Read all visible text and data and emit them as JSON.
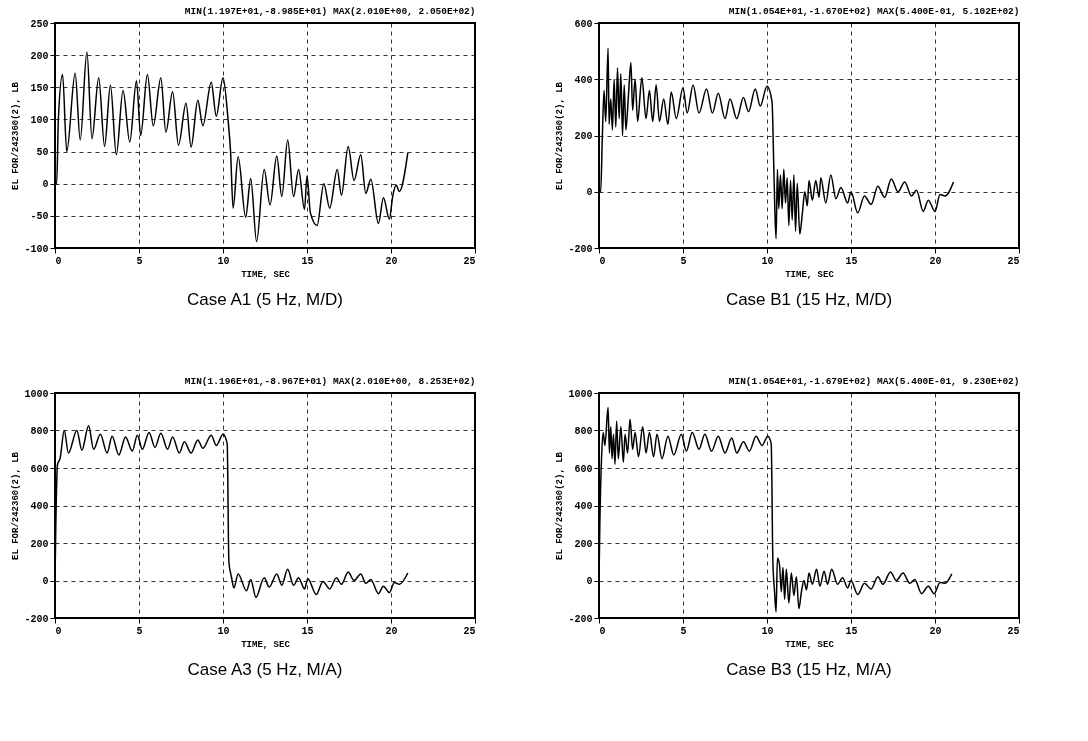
{
  "chart_data": [
    {
      "type": "line",
      "title": "MIN(1.197E+01,-8.985E+01) MAX(2.010E+00, 2.050E+02)",
      "xlabel": "TIME, SEC",
      "ylabel": "EL FOR/242360(2), LB",
      "annotations": [
        "Case A1 (5 Hz, M/D)"
      ],
      "color": "#000000",
      "grid": true,
      "xlim": [
        0,
        25
      ],
      "xticks": [
        0,
        5,
        10,
        15,
        20,
        25
      ],
      "ylim": [
        -100,
        250
      ],
      "yticks": [
        -100,
        -50,
        0,
        50,
        100,
        150,
        200,
        250
      ],
      "x": [
        0,
        0.1,
        0.2,
        0.45,
        0.7,
        1.2,
        1.5,
        1.9,
        2.2,
        2.6,
        2.95,
        3.3,
        3.65,
        4.05,
        4.45,
        4.85,
        5.1,
        5.5,
        5.85,
        6.3,
        6.6,
        7.0,
        7.35,
        7.8,
        8.1,
        8.5,
        8.8,
        9.3,
        9.6,
        10.0,
        10.3,
        10.45,
        10.6,
        10.9,
        11.35,
        11.65,
        12.0,
        12.45,
        12.8,
        13.2,
        13.5,
        13.85,
        14.2,
        14.5,
        14.85,
        15.0,
        15.2,
        15.6,
        16.0,
        16.35,
        16.8,
        17.05,
        17.45,
        17.8,
        18.2,
        18.5,
        18.8,
        19.25,
        19.55,
        19.9,
        20.1,
        20.3,
        20.5,
        21.0
      ],
      "values": [
        0,
        0,
        100,
        170,
        50,
        172,
        68,
        205,
        70,
        165,
        58,
        153,
        45,
        145,
        65,
        160,
        75,
        170,
        90,
        165,
        80,
        143,
        60,
        125,
        57,
        130,
        90,
        158,
        105,
        165,
        100,
        50,
        -38,
        42,
        -52,
        8,
        -90,
        22,
        -33,
        43,
        -20,
        68,
        -20,
        22,
        -40,
        12,
        -45,
        -65,
        0,
        -38,
        22,
        -18,
        58,
        5,
        45,
        -15,
        7,
        -62,
        -22,
        -55,
        -20,
        -2,
        -12,
        48
      ]
    },
    {
      "type": "line",
      "title": "MIN(1.054E+01,-1.670E+02) MAX(5.400E-01, 5.102E+02)",
      "xlabel": "TIME, SEC",
      "ylabel": "EL FOR/242360(2), LB",
      "annotations": [
        "Case B1 (15 Hz, M/D)"
      ],
      "color": "#000000",
      "grid": true,
      "xlim": [
        0,
        25
      ],
      "xticks": [
        0,
        5,
        10,
        15,
        20,
        25
      ],
      "ylim": [
        -200,
        600
      ],
      "yticks": [
        -200,
        0,
        200,
        400,
        600
      ],
      "x": [
        0,
        0.1,
        0.2,
        0.3,
        0.4,
        0.54,
        0.6,
        0.7,
        0.8,
        0.9,
        1.0,
        1.1,
        1.2,
        1.3,
        1.4,
        1.5,
        1.6,
        1.75,
        1.9,
        2.0,
        2.15,
        2.3,
        2.55,
        2.8,
        3.0,
        3.2,
        3.4,
        3.6,
        3.85,
        4.1,
        4.3,
        4.6,
        5.0,
        5.25,
        5.6,
        5.95,
        6.4,
        6.75,
        7.1,
        7.5,
        7.8,
        8.2,
        8.6,
        8.9,
        9.3,
        9.6,
        10.0,
        10.3,
        10.4,
        10.47,
        10.54,
        10.62,
        10.7,
        10.8,
        10.9,
        11.0,
        11.1,
        11.2,
        11.3,
        11.4,
        11.5,
        11.6,
        11.7,
        11.8,
        11.95,
        12.1,
        12.25,
        12.4,
        12.5,
        12.7,
        12.9,
        13.1,
        13.2,
        13.5,
        13.8,
        14.1,
        14.4,
        14.8,
        15.0,
        15.4,
        15.8,
        16.2,
        16.6,
        17.0,
        17.4,
        17.8,
        18.2,
        18.6,
        18.9,
        19.3,
        19.6,
        20.0,
        20.3,
        20.6,
        21.1
      ],
      "values": [
        0,
        0,
        200,
        360,
        250,
        510,
        240,
        330,
        220,
        400,
        230,
        440,
        260,
        420,
        200,
        380,
        220,
        340,
        460,
        290,
        400,
        250,
        405,
        260,
        360,
        250,
        380,
        250,
        330,
        240,
        355,
        260,
        370,
        280,
        380,
        280,
        365,
        280,
        350,
        260,
        330,
        260,
        335,
        285,
        365,
        305,
        375,
        320,
        100,
        -70,
        -167,
        80,
        -60,
        60,
        -60,
        80,
        -40,
        50,
        -120,
        40,
        -100,
        60,
        -140,
        30,
        -150,
        -80,
        0,
        -50,
        40,
        -30,
        40,
        -20,
        50,
        -40,
        60,
        -25,
        15,
        -40,
        0,
        -75,
        -15,
        -45,
        20,
        -20,
        45,
        0,
        35,
        -15,
        5,
        -70,
        -30,
        -70,
        -10,
        -15,
        35
      ]
    },
    {
      "type": "line",
      "title": "MIN(1.196E+01,-8.967E+01) MAX(2.010E+00, 8.253E+02)",
      "xlabel": "TIME, SEC",
      "ylabel": "EL FOR/242360(2), LB",
      "annotations": [
        "Case A3 (5 Hz, M/A)"
      ],
      "color": "#000000",
      "grid": true,
      "xlim": [
        0,
        25
      ],
      "xticks": [
        0,
        5,
        10,
        15,
        20,
        25
      ],
      "ylim": [
        -200,
        1000
      ],
      "yticks": [
        -200,
        0,
        200,
        400,
        600,
        800,
        1000
      ],
      "x": [
        0,
        0.05,
        0.15,
        0.3,
        0.55,
        0.8,
        1.3,
        1.6,
        2.0,
        2.3,
        2.7,
        3.1,
        3.4,
        3.8,
        4.2,
        4.6,
        4.9,
        5.2,
        5.6,
        5.95,
        6.3,
        6.7,
        7.0,
        7.4,
        7.7,
        8.1,
        8.5,
        8.8,
        9.3,
        9.6,
        10.0,
        10.25,
        10.35,
        10.5,
        10.65,
        10.9,
        11.4,
        11.65,
        11.96,
        12.45,
        12.75,
        13.2,
        13.5,
        13.85,
        14.2,
        14.5,
        14.85,
        15.05,
        15.55,
        15.95,
        16.35,
        16.75,
        17.05,
        17.45,
        17.8,
        18.2,
        18.5,
        18.8,
        19.25,
        19.55,
        19.9,
        20.2,
        20.5,
        21.0
      ],
      "values": [
        0,
        300,
        620,
        650,
        800,
        680,
        800,
        695,
        825,
        700,
        780,
        680,
        770,
        670,
        765,
        690,
        775,
        700,
        790,
        710,
        785,
        700,
        765,
        680,
        740,
        680,
        750,
        705,
        775,
        720,
        780,
        730,
        100,
        20,
        -40,
        35,
        -55,
        5,
        -90,
        15,
        -35,
        35,
        -25,
        60,
        -25,
        15,
        -45,
        10,
        -75,
        -5,
        -45,
        15,
        -20,
        45,
        0,
        35,
        -15,
        5,
        -70,
        -30,
        -65,
        -10,
        -20,
        40
      ]
    },
    {
      "type": "line",
      "title": "MIN(1.054E+01,-1.679E+02) MAX(5.400E-01, 9.230E+02)",
      "xlabel": "TIME, SEC",
      "ylabel": "EL FOR/242360(2), LB",
      "annotations": [
        "Case B3 (15 Hz, M/A)"
      ],
      "color": "#000000",
      "grid": true,
      "xlim": [
        0,
        25
      ],
      "xticks": [
        0,
        5,
        10,
        15,
        20,
        25
      ],
      "ylim": [
        -200,
        1000
      ],
      "yticks": [
        -200,
        0,
        200,
        400,
        600,
        800,
        1000
      ],
      "x": [
        0,
        0.05,
        0.15,
        0.25,
        0.35,
        0.54,
        0.62,
        0.7,
        0.78,
        0.86,
        0.95,
        1.05,
        1.15,
        1.3,
        1.45,
        1.55,
        1.7,
        1.85,
        2.0,
        2.15,
        2.35,
        2.6,
        2.8,
        3.0,
        3.25,
        3.45,
        3.75,
        4.1,
        4.45,
        4.9,
        5.2,
        5.55,
        5.95,
        6.3,
        6.7,
        7.1,
        7.5,
        7.9,
        8.2,
        8.6,
        8.95,
        9.35,
        9.7,
        10.05,
        10.25,
        10.35,
        10.45,
        10.54,
        10.62,
        10.75,
        10.85,
        10.95,
        11.05,
        11.15,
        11.3,
        11.45,
        11.6,
        11.75,
        11.9,
        12.05,
        12.2,
        12.35,
        12.5,
        12.7,
        12.95,
        13.15,
        13.4,
        13.6,
        13.85,
        14.2,
        14.5,
        14.8,
        15.0,
        15.4,
        15.8,
        16.2,
        16.6,
        16.9,
        17.35,
        17.7,
        18.1,
        18.5,
        18.8,
        19.2,
        19.6,
        19.95,
        20.3,
        20.6,
        21.0
      ],
      "values": [
        0,
        300,
        650,
        790,
        720,
        923,
        680,
        820,
        650,
        780,
        620,
        850,
        650,
        820,
        630,
        780,
        680,
        860,
        700,
        790,
        660,
        820,
        680,
        790,
        660,
        780,
        650,
        770,
        670,
        780,
        690,
        790,
        700,
        780,
        690,
        770,
        680,
        760,
        680,
        740,
        690,
        770,
        720,
        770,
        730,
        100,
        -60,
        -168,
        120,
        80,
        -60,
        70,
        -100,
        60,
        -120,
        40,
        -80,
        20,
        -150,
        -60,
        0,
        -50,
        40,
        -20,
        60,
        -30,
        50,
        -20,
        60,
        -20,
        15,
        -40,
        0,
        -75,
        -15,
        -45,
        20,
        -20,
        45,
        0,
        40,
        -15,
        5,
        -70,
        -30,
        -70,
        -10,
        -15,
        35
      ]
    }
  ]
}
